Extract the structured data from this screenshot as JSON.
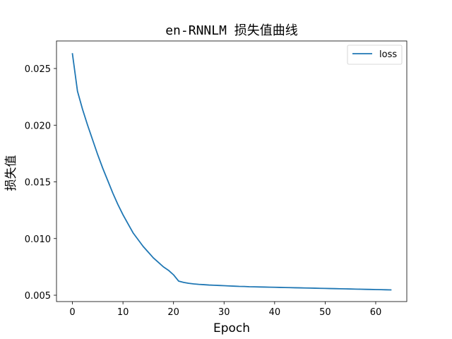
{
  "chart_data": {
    "type": "line",
    "title": "en-RNNLM 损失值曲线",
    "xlabel": "Epoch",
    "ylabel": "损失值",
    "xlim": [
      -3.15,
      66.15
    ],
    "ylim": [
      0.00444,
      0.02743
    ],
    "xticks": [
      0,
      10,
      20,
      30,
      40,
      50,
      60
    ],
    "xtick_labels": [
      "0",
      "10",
      "20",
      "30",
      "40",
      "50",
      "60"
    ],
    "yticks": [
      0.005,
      0.01,
      0.015,
      0.02,
      0.025
    ],
    "ytick_labels": [
      "0.005",
      "0.010",
      "0.015",
      "0.020",
      "0.025"
    ],
    "grid": false,
    "legend_position": "top-right",
    "series": [
      {
        "name": "loss",
        "color": "#1f77b4",
        "x": [
          0,
          1,
          2,
          3,
          4,
          5,
          6,
          7,
          8,
          9,
          10,
          11,
          12,
          13,
          14,
          15,
          16,
          17,
          18,
          19,
          20,
          21,
          22,
          23,
          24,
          25,
          26,
          27,
          28,
          29,
          30,
          31,
          32,
          33,
          34,
          35,
          36,
          37,
          38,
          39,
          40,
          41,
          42,
          43,
          44,
          45,
          46,
          47,
          48,
          49,
          50,
          51,
          52,
          53,
          54,
          55,
          56,
          57,
          58,
          59,
          60,
          61,
          62,
          63
        ],
        "y": [
          0.0263,
          0.023,
          0.0214,
          0.02,
          0.0187,
          0.0174,
          0.0162,
          0.0151,
          0.014,
          0.013,
          0.0121,
          0.0113,
          0.0105,
          0.0099,
          0.0093,
          0.0088,
          0.0083,
          0.0079,
          0.0075,
          0.0072,
          0.0068,
          0.00625,
          0.00613,
          0.00605,
          0.006,
          0.00596,
          0.00593,
          0.0059,
          0.00588,
          0.00586,
          0.00584,
          0.00582,
          0.0058,
          0.00578,
          0.00577,
          0.00575,
          0.00574,
          0.00573,
          0.00572,
          0.00571,
          0.0057,
          0.00569,
          0.00568,
          0.00567,
          0.00566,
          0.00565,
          0.00564,
          0.00563,
          0.00562,
          0.00561,
          0.0056,
          0.00559,
          0.00558,
          0.00557,
          0.00556,
          0.00555,
          0.00554,
          0.00553,
          0.00552,
          0.00551,
          0.0055,
          0.00549,
          0.00548,
          0.00547
        ]
      }
    ]
  }
}
